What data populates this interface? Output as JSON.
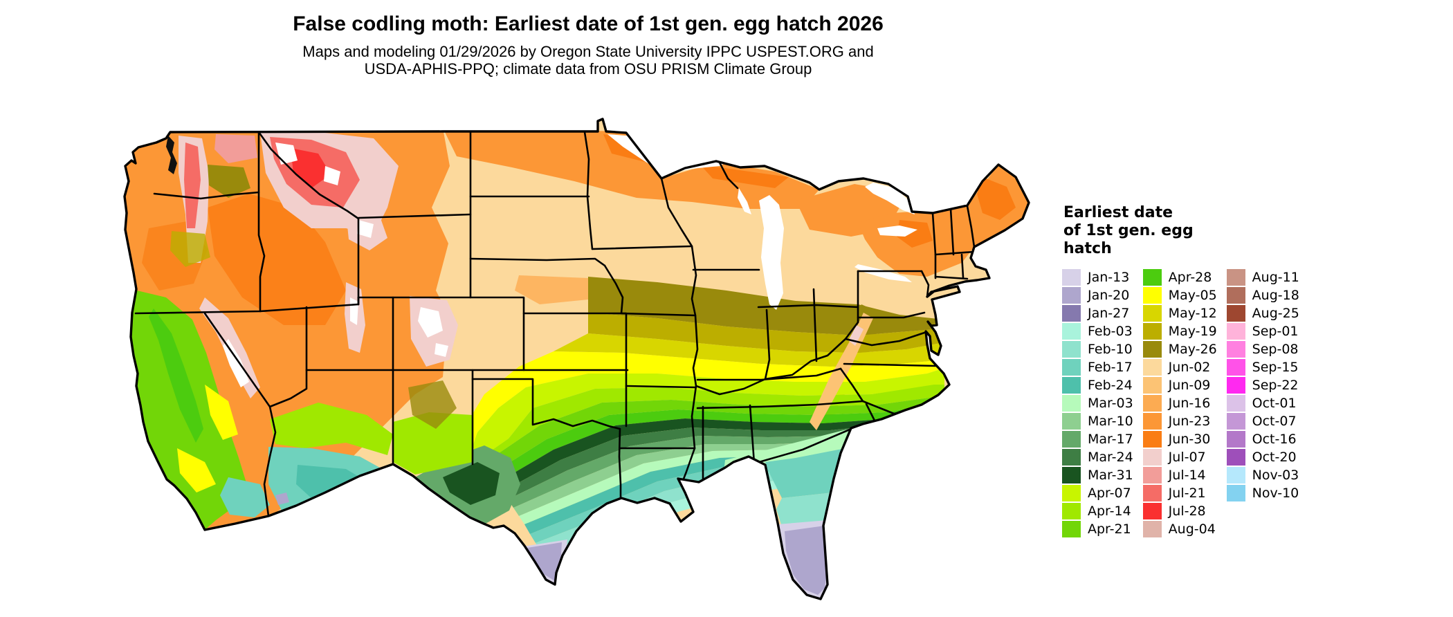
{
  "title": "False codling moth: Earliest date of 1st gen. egg hatch 2026",
  "subtitle_line1": "Maps and modeling 01/29/2026 by Oregon State University IPPC USPEST.ORG and",
  "subtitle_line2": "USDA-APHIS-PPQ; climate data from OSU PRISM Climate Group",
  "legend": {
    "title_lines": [
      "Earliest date",
      "of 1st gen. egg",
      "hatch"
    ],
    "columns": [
      [
        {
          "label": "Jan-13",
          "color": "#d7d1e8"
        },
        {
          "label": "Jan-20",
          "color": "#aea6cd"
        },
        {
          "label": "Jan-27",
          "color": "#8579ae"
        },
        {
          "label": "Feb-03",
          "color": "#a9f3dc"
        },
        {
          "label": "Feb-10",
          "color": "#8fe2cd"
        },
        {
          "label": "Feb-17",
          "color": "#6fd2bd"
        },
        {
          "label": "Feb-24",
          "color": "#4ec0ab"
        },
        {
          "label": "Mar-03",
          "color": "#b6fabb"
        },
        {
          "label": "Mar-10",
          "color": "#8ecf90"
        },
        {
          "label": "Mar-17",
          "color": "#64a969"
        },
        {
          "label": "Mar-24",
          "color": "#3e7e44"
        },
        {
          "label": "Mar-31",
          "color": "#195420"
        },
        {
          "label": "Apr-07",
          "color": "#c8f500"
        },
        {
          "label": "Apr-14",
          "color": "#a0e800"
        },
        {
          "label": "Apr-21",
          "color": "#72d608"
        }
      ],
      [
        {
          "label": "Apr-28",
          "color": "#4ccc0f"
        },
        {
          "label": "May-05",
          "color": "#ffff00"
        },
        {
          "label": "May-12",
          "color": "#d8d600"
        },
        {
          "label": "May-19",
          "color": "#bcae00"
        },
        {
          "label": "May-26",
          "color": "#998a0c"
        },
        {
          "label": "Jun-02",
          "color": "#fcd99c"
        },
        {
          "label": "Jun-09",
          "color": "#fcc374"
        },
        {
          "label": "Jun-16",
          "color": "#fcab52"
        },
        {
          "label": "Jun-23",
          "color": "#fc9736"
        },
        {
          "label": "Jun-30",
          "color": "#fa7d14"
        },
        {
          "label": "Jul-07",
          "color": "#f2cfcc"
        },
        {
          "label": "Jul-14",
          "color": "#f29d99"
        },
        {
          "label": "Jul-21",
          "color": "#f56c66"
        },
        {
          "label": "Jul-28",
          "color": "#fa3030"
        },
        {
          "label": "Aug-04",
          "color": "#e0b3a9"
        }
      ],
      [
        {
          "label": "Aug-11",
          "color": "#c99384"
        },
        {
          "label": "Aug-18",
          "color": "#b06e5c"
        },
        {
          "label": "Aug-25",
          "color": "#9e4730"
        },
        {
          "label": "Sep-01",
          "color": "#ffb3da"
        },
        {
          "label": "Sep-08",
          "color": "#ff80e0"
        },
        {
          "label": "Sep-15",
          "color": "#ff52e8"
        },
        {
          "label": "Sep-22",
          "color": "#ff29f0"
        },
        {
          "label": "Oct-01",
          "color": "#dcc2e8"
        },
        {
          "label": "Oct-07",
          "color": "#c497d6"
        },
        {
          "label": "Oct-16",
          "color": "#b378c9"
        },
        {
          "label": "Oct-20",
          "color": "#9e4fba"
        },
        {
          "label": "Nov-03",
          "color": "#b5e8fc"
        },
        {
          "label": "Nov-10",
          "color": "#83d2f0"
        }
      ]
    ]
  }
}
